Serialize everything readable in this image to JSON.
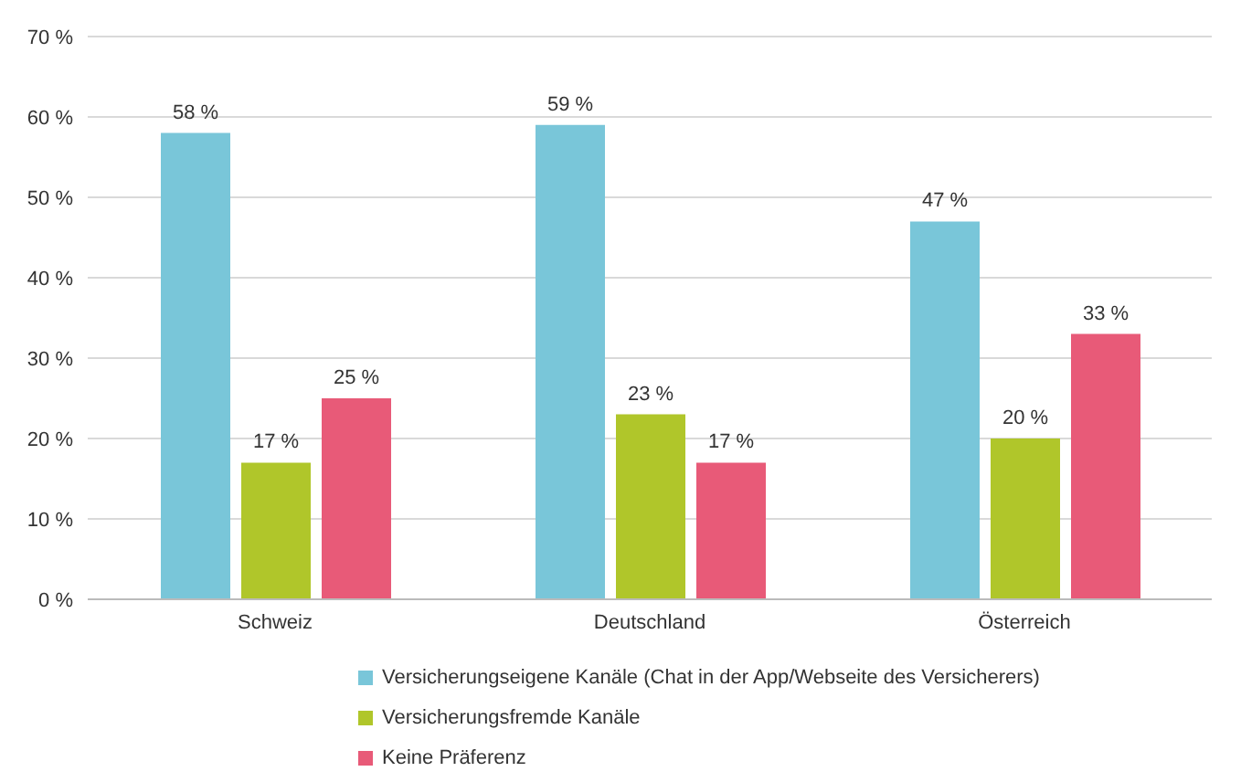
{
  "chart_data": {
    "type": "bar",
    "categories": [
      "Schweiz",
      "Deutschland",
      "Österreich"
    ],
    "series": [
      {
        "name": "Versicherungseigene Kanäle (Chat in der App/Webseite des Versicherers)",
        "color": "#79c6d9",
        "values": [
          58,
          59,
          47
        ],
        "value_labels": [
          "58 %",
          "59 %",
          "47 %"
        ]
      },
      {
        "name": "Versicherungsfremde Kanäle",
        "color": "#b0c62a",
        "values": [
          17,
          23,
          20
        ],
        "value_labels": [
          "17 %",
          "23 %",
          "20 %"
        ]
      },
      {
        "name": "Keine Präferenz",
        "color": "#e85a78",
        "values": [
          25,
          17,
          33
        ],
        "value_labels": [
          "25 %",
          "17 %",
          "33 %"
        ]
      }
    ],
    "ylim": [
      0,
      70
    ],
    "yticks": [
      {
        "value": 0,
        "label": "0 %"
      },
      {
        "value": 10,
        "label": "10 %"
      },
      {
        "value": 20,
        "label": "20 %"
      },
      {
        "value": 30,
        "label": "30 %"
      },
      {
        "value": 40,
        "label": "40 %"
      },
      {
        "value": 50,
        "label": "50 %"
      },
      {
        "value": 60,
        "label": "60 %"
      },
      {
        "value": 70,
        "label": "70 %"
      }
    ],
    "grid": "y",
    "legend": "bottom"
  }
}
